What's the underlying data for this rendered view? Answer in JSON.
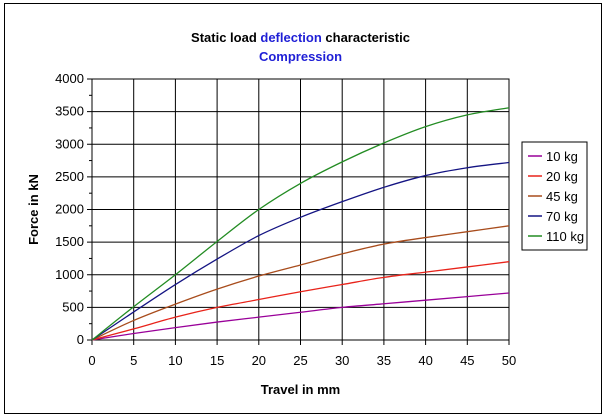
{
  "chart_data": {
    "type": "line",
    "title_parts": [
      {
        "text": "Static load ",
        "color": "#000000"
      },
      {
        "text": "deflection",
        "color": "#1f1fd6"
      },
      {
        "text": " characteristic",
        "color": "#000000"
      }
    ],
    "subtitle": "Compression",
    "subtitle_color": "#1f1fd6",
    "xlabel": "Travel in mm",
    "ylabel": "Force in kN",
    "xlim": [
      0,
      50
    ],
    "ylim": [
      0,
      4000
    ],
    "x_ticks": [
      0,
      5,
      10,
      15,
      20,
      25,
      30,
      35,
      40,
      45,
      50
    ],
    "y_ticks": [
      0,
      500,
      1000,
      1500,
      2000,
      2500,
      3000,
      3500,
      4000
    ],
    "grid": true,
    "legend_position": "right",
    "x": [
      0,
      5,
      10,
      15,
      20,
      25,
      30,
      35,
      40,
      45,
      50
    ],
    "series": [
      {
        "name": "10 kg",
        "color": "#990099",
        "values": [
          0,
          100,
          190,
          275,
          350,
          425,
          500,
          555,
          610,
          665,
          720
        ]
      },
      {
        "name": "20 kg",
        "color": "#e8231a",
        "values": [
          0,
          170,
          350,
          500,
          620,
          740,
          850,
          960,
          1040,
          1120,
          1200
        ]
      },
      {
        "name": "45 kg",
        "color": "#a84c1c",
        "values": [
          0,
          300,
          550,
          780,
          980,
          1150,
          1320,
          1470,
          1570,
          1660,
          1750
        ]
      },
      {
        "name": "70 kg",
        "color": "#141483",
        "values": [
          0,
          430,
          850,
          1240,
          1600,
          1880,
          2120,
          2340,
          2520,
          2640,
          2720
        ]
      },
      {
        "name": "110 kg",
        "color": "#238c23",
        "values": [
          0,
          510,
          1000,
          1510,
          2000,
          2400,
          2730,
          3020,
          3270,
          3450,
          3560
        ]
      }
    ]
  }
}
